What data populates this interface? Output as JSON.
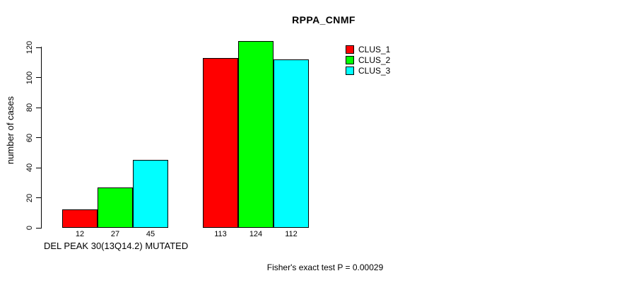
{
  "chart_data": {
    "type": "bar",
    "title": "RPPA_CNMF",
    "xlabel": "DEL PEAK 30(13Q14.2) MUTATED",
    "ylabel": "number of cases",
    "annotation": "Fisher's exact test P = 0.00029",
    "categories": [
      "",
      ""
    ],
    "series": [
      {
        "name": "CLUS_1",
        "color": "#FF0000",
        "values": [
          12,
          113
        ]
      },
      {
        "name": "CLUS_2",
        "color": "#00FF00",
        "values": [
          27,
          124
        ]
      },
      {
        "name": "CLUS_3",
        "color": "#00FFFF",
        "values": [
          45,
          112
        ]
      }
    ],
    "bar_value_labels": [
      [
        12,
        27,
        45
      ],
      [
        113,
        124,
        112
      ]
    ],
    "ylim": [
      0,
      120
    ],
    "yticks": [
      0,
      20,
      40,
      60,
      80,
      100,
      120
    ],
    "grid": false,
    "legend_position": "top-right"
  }
}
